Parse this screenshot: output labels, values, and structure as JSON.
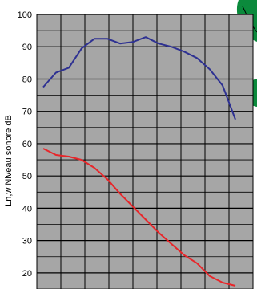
{
  "chart_data": {
    "type": "line",
    "title": "",
    "xlabel": "",
    "ylabel": "Ln,w Niveau sonore dB",
    "ylim": [
      15,
      100
    ],
    "yticks": [
      20,
      30,
      40,
      50,
      60,
      70,
      80,
      90,
      100
    ],
    "ytick_labels": [
      "20",
      "30",
      "40",
      "50",
      "60",
      "70",
      "80",
      "90",
      "100"
    ],
    "x_count": 16,
    "grid": true,
    "plot_background": "#a6a6a6",
    "grid_color": "#000000",
    "series": [
      {
        "color": "#2e3192",
        "values": [
          77.5,
          82,
          83.5,
          89.5,
          92.5,
          92.5,
          91,
          91.5,
          93,
          91,
          90,
          88.5,
          86.5,
          83,
          78,
          67.5
        ]
      },
      {
        "color": "#e8262a",
        "values": [
          58.5,
          56.5,
          56,
          55,
          52.5,
          49,
          44.5,
          40.5,
          36.5,
          32.5,
          29,
          25.5,
          23,
          19,
          17,
          16
        ]
      }
    ]
  },
  "decor": {
    "leaf_color": "#0b8a3c"
  }
}
